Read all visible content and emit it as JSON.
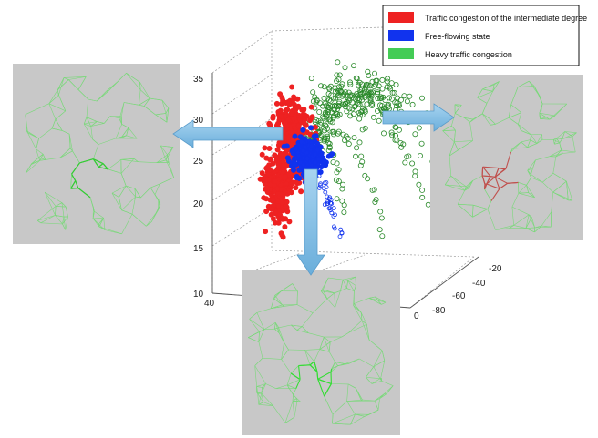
{
  "chart_data": {
    "type": "scatter",
    "legend": {
      "placement": "top-right",
      "entries": [
        {
          "label": "Traffic congestion of the intermediate degree",
          "color": "#ee2222"
        },
        {
          "label": "Free-flowing state",
          "color": "#1133ee"
        },
        {
          "label": "Heavy traffic congestion",
          "color": "#44cc55"
        }
      ]
    },
    "z_ticks": [
      "35",
      "30",
      "25",
      "20",
      "15",
      "10"
    ],
    "x_ticks": [
      "40"
    ],
    "y_ticks": [
      "-20",
      "-40",
      "-60",
      "-80",
      "0"
    ],
    "series_colors": {
      "intermediate": "#ee2222",
      "free": "#1133ee",
      "heavy": "#2b8a2b"
    },
    "grid": true,
    "road_networks": 3
  }
}
